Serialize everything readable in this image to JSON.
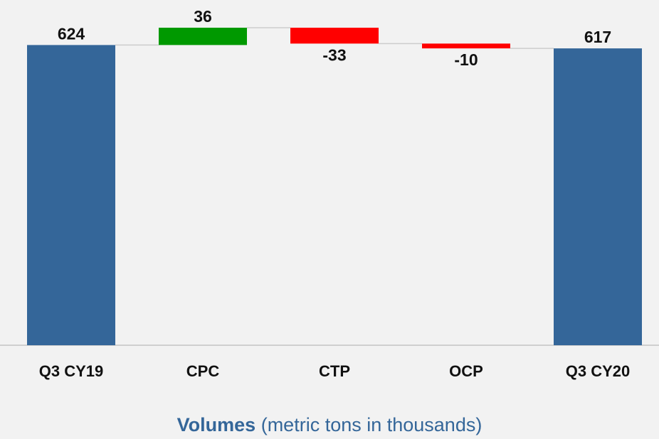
{
  "chart_data": {
    "type": "waterfall",
    "title": {
      "bold": "Volumes",
      "rest": "(metric tons in thousands)"
    },
    "categories": [
      "Q3 CY19",
      "CPC",
      "CTP",
      "OCP",
      "Q3 CY20"
    ],
    "values": [
      624,
      36,
      -33,
      -10,
      617
    ],
    "is_total": [
      true,
      false,
      false,
      false,
      true
    ],
    "total_color": "#346699",
    "increase_color": "#009900",
    "decrease_color": "#ff0000"
  }
}
